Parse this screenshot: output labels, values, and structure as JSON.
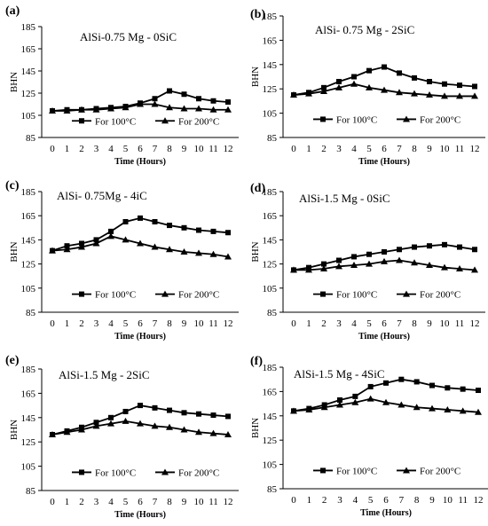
{
  "chart_data": [
    {
      "type": "line",
      "label": "(a)",
      "title": "AlSi-0.75 Mg - 0SiC",
      "xlabel": "Time (Hours)",
      "ylabel": "BHN",
      "x": [
        0,
        1,
        2,
        3,
        4,
        5,
        6,
        7,
        8,
        9,
        10,
        11,
        12
      ],
      "xticks": [
        "0",
        "1",
        "2",
        "3",
        "4",
        "5",
        "6",
        "7",
        "8",
        "9",
        "10",
        "11",
        "12"
      ],
      "ylim": [
        85,
        185
      ],
      "yticks": [
        "85",
        "105",
        "125",
        "145",
        "165",
        "185"
      ],
      "series": [
        {
          "name": "For 100°C",
          "marker": "square",
          "values": [
            109,
            110,
            110,
            111,
            112,
            113,
            116,
            120,
            127,
            124,
            120,
            118,
            117
          ]
        },
        {
          "name": "For 200°C",
          "marker": "triangle",
          "values": [
            109,
            109,
            110,
            110,
            111,
            112,
            115,
            115,
            112,
            111,
            111,
            110,
            110
          ]
        }
      ]
    },
    {
      "type": "line",
      "label": "(b)",
      "title": "AlSi- 0.75 Mg - 2SiC",
      "xlabel": "Time  (Hours)",
      "ylabel": "BHN",
      "x": [
        0,
        1,
        2,
        3,
        4,
        5,
        6,
        7,
        8,
        9,
        10,
        11,
        12
      ],
      "xticks": [
        "0",
        "1",
        "2",
        "3",
        "4",
        "5",
        "6",
        "7",
        "8",
        "9",
        "10",
        "11",
        "12"
      ],
      "ylim": [
        85,
        185
      ],
      "yticks": [
        "85",
        "105",
        "125",
        "145",
        "165",
        "185"
      ],
      "series": [
        {
          "name": "For 100°C",
          "marker": "square",
          "values": [
            120,
            122,
            126,
            131,
            135,
            140,
            143,
            138,
            134,
            131,
            129,
            128,
            127
          ]
        },
        {
          "name": "For 200°C",
          "marker": "triangle",
          "values": [
            120,
            121,
            123,
            126,
            129,
            126,
            124,
            122,
            121,
            120,
            119,
            119,
            119
          ]
        }
      ]
    },
    {
      "type": "line",
      "label": "(c)",
      "title": "AlSi- 0.75Mg - 4iC",
      "xlabel": "Time  (Hours)",
      "ylabel": "BHN",
      "x": [
        0,
        1,
        2,
        3,
        4,
        5,
        6,
        7,
        8,
        9,
        10,
        11,
        12
      ],
      "xticks": [
        "0",
        "1",
        "2",
        "3",
        "4",
        "5",
        "6",
        "7",
        "8",
        "9",
        "10",
        "11",
        "12"
      ],
      "ylim": [
        85,
        185
      ],
      "yticks": [
        "85",
        "105",
        "125",
        "145",
        "165",
        "185"
      ],
      "series": [
        {
          "name": "For 100°C",
          "marker": "square",
          "values": [
            136,
            140,
            142,
            145,
            152,
            160,
            163,
            160,
            157,
            155,
            153,
            152,
            151
          ]
        },
        {
          "name": "For 200°C",
          "marker": "triangle",
          "values": [
            136,
            137,
            139,
            142,
            148,
            145,
            142,
            139,
            137,
            135,
            134,
            133,
            131
          ]
        }
      ]
    },
    {
      "type": "line",
      "label": "(d)",
      "title": "AlSi-1.5 Mg - 0SiC",
      "xlabel": "Time  (Hours)",
      "ylabel": "BHN",
      "x": [
        0,
        1,
        2,
        3,
        4,
        5,
        6,
        7,
        8,
        9,
        10,
        11,
        12
      ],
      "xticks": [
        "0",
        "1",
        "2",
        "3",
        "4",
        "5",
        "6",
        "7",
        "8",
        "9",
        "10",
        "11",
        "12"
      ],
      "ylim": [
        85,
        185
      ],
      "yticks": [
        "85",
        "105",
        "125",
        "145",
        "165",
        "185"
      ],
      "series": [
        {
          "name": "For 100°C",
          "marker": "square",
          "values": [
            120,
            122,
            125,
            128,
            131,
            133,
            135,
            137,
            139,
            140,
            141,
            139,
            137
          ]
        },
        {
          "name": "For 200°C",
          "marker": "triangle",
          "values": [
            120,
            120,
            121,
            123,
            124,
            125,
            127,
            128,
            126,
            124,
            122,
            121,
            120
          ]
        }
      ]
    },
    {
      "type": "line",
      "label": "(e)",
      "title": "AlSi-1.5 Mg - 2SiC",
      "xlabel": "Time  (Hours)",
      "ylabel": "BHN",
      "x": [
        0,
        1,
        2,
        3,
        4,
        5,
        6,
        7,
        8,
        9,
        10,
        11,
        12
      ],
      "xticks": [
        "0",
        "1",
        "2",
        "3",
        "4",
        "5",
        "6",
        "7",
        "8",
        "9",
        "10",
        "11",
        "12"
      ],
      "ylim": [
        85,
        185
      ],
      "yticks": [
        "85",
        "105",
        "125",
        "145",
        "165",
        "185"
      ],
      "series": [
        {
          "name": "For 100°C",
          "marker": "square",
          "values": [
            131,
            134,
            137,
            141,
            145,
            150,
            155,
            153,
            151,
            149,
            148,
            147,
            146
          ]
        },
        {
          "name": "For 200°C",
          "marker": "triangle",
          "values": [
            131,
            133,
            135,
            138,
            140,
            142,
            140,
            138,
            137,
            135,
            133,
            132,
            131
          ]
        }
      ]
    },
    {
      "type": "line",
      "label": "(f)",
      "title": "AlSi-1.5 Mg - 4SiC",
      "xlabel": "Time  (Hours)",
      "ylabel": "BHN",
      "x": [
        0,
        1,
        2,
        3,
        4,
        5,
        6,
        7,
        8,
        9,
        10,
        11,
        12
      ],
      "xticks": [
        "0",
        "1",
        "2",
        "3",
        "4",
        "5",
        "6",
        "7",
        "8",
        "9",
        "10",
        "11",
        "12"
      ],
      "ylim": [
        85,
        185
      ],
      "yticks": [
        "85",
        "105",
        "125",
        "145",
        "165",
        "185"
      ],
      "series": [
        {
          "name": "For 100°C",
          "marker": "square",
          "values": [
            149,
            151,
            154,
            158,
            161,
            169,
            172,
            175,
            173,
            170,
            168,
            167,
            166
          ]
        },
        {
          "name": "For 200°C",
          "marker": "triangle",
          "values": [
            149,
            150,
            152,
            154,
            156,
            159,
            156,
            154,
            152,
            151,
            150,
            149,
            148
          ]
        }
      ]
    }
  ]
}
